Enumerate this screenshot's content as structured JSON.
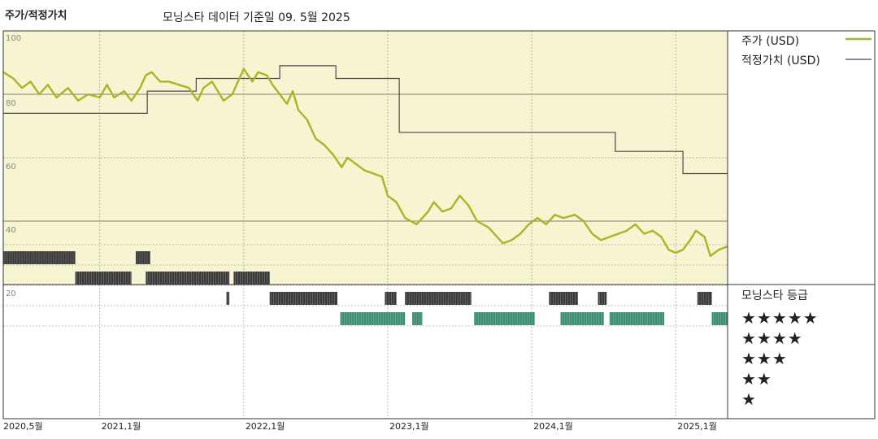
{
  "header": {
    "left_title": "주가/적정가치",
    "subtitle": "모닝스타 데이터 기준일 09. 5월 2025"
  },
  "legend": {
    "price_label": "주가 (USD)",
    "fair_value_label": "적정가치 (USD)",
    "price_color": "#a8b526",
    "fair_value_color": "#4a4a4a"
  },
  "rating": {
    "title": "모닝스타 등급",
    "rows": [
      "★★★★★",
      "★★★★",
      "★★★",
      "★★",
      "★"
    ],
    "color_5star": "#3d8c74",
    "color_other": "#3a3a3a"
  },
  "colors": {
    "plot_bg": "#f7f4d2"
  },
  "chart_data": {
    "type": "line",
    "x_unit": "year",
    "x_range": [
      2020.33,
      2025.36
    ],
    "ylim": [
      20,
      100
    ],
    "yticks": [
      20,
      40,
      60,
      80,
      100
    ],
    "xtick_labels": [
      {
        "x": 2020.33,
        "label": "2020,5월"
      },
      {
        "x": 2021.0,
        "label": "2021,1월"
      },
      {
        "x": 2022.0,
        "label": "2022,1월"
      },
      {
        "x": 2023.0,
        "label": "2023,1월"
      },
      {
        "x": 2024.0,
        "label": "2024,1월"
      },
      {
        "x": 2025.0,
        "label": "2025,1월"
      }
    ],
    "grid": true,
    "series": [
      {
        "name": "주가 (USD)",
        "points": [
          [
            2020.33,
            87
          ],
          [
            2020.4,
            85
          ],
          [
            2020.46,
            82
          ],
          [
            2020.52,
            84
          ],
          [
            2020.58,
            80
          ],
          [
            2020.64,
            83
          ],
          [
            2020.7,
            79
          ],
          [
            2020.78,
            82
          ],
          [
            2020.85,
            78
          ],
          [
            2020.92,
            80
          ],
          [
            2021.0,
            79
          ],
          [
            2021.05,
            83
          ],
          [
            2021.1,
            79
          ],
          [
            2021.17,
            81
          ],
          [
            2021.22,
            78
          ],
          [
            2021.28,
            82
          ],
          [
            2021.32,
            86
          ],
          [
            2021.36,
            87
          ],
          [
            2021.42,
            84
          ],
          [
            2021.48,
            84
          ],
          [
            2021.55,
            83
          ],
          [
            2021.62,
            82
          ],
          [
            2021.68,
            78
          ],
          [
            2021.72,
            82
          ],
          [
            2021.78,
            84
          ],
          [
            2021.82,
            81
          ],
          [
            2021.86,
            78
          ],
          [
            2021.92,
            80
          ],
          [
            2021.96,
            84
          ],
          [
            2022.0,
            88
          ],
          [
            2022.06,
            84
          ],
          [
            2022.1,
            87
          ],
          [
            2022.16,
            86
          ],
          [
            2022.2,
            83
          ],
          [
            2022.25,
            80
          ],
          [
            2022.3,
            77
          ],
          [
            2022.34,
            81
          ],
          [
            2022.38,
            75
          ],
          [
            2022.44,
            72
          ],
          [
            2022.5,
            66
          ],
          [
            2022.56,
            64
          ],
          [
            2022.62,
            61
          ],
          [
            2022.68,
            57
          ],
          [
            2022.72,
            60
          ],
          [
            2022.78,
            58
          ],
          [
            2022.84,
            56
          ],
          [
            2022.9,
            55
          ],
          [
            2022.96,
            54
          ],
          [
            2023.0,
            48
          ],
          [
            2023.06,
            46
          ],
          [
            2023.12,
            41
          ],
          [
            2023.2,
            39
          ],
          [
            2023.28,
            43
          ],
          [
            2023.32,
            46
          ],
          [
            2023.38,
            43
          ],
          [
            2023.44,
            44
          ],
          [
            2023.5,
            48
          ],
          [
            2023.56,
            45
          ],
          [
            2023.62,
            40
          ],
          [
            2023.7,
            38
          ],
          [
            2023.76,
            35
          ],
          [
            2023.8,
            33
          ],
          [
            2023.86,
            34
          ],
          [
            2023.92,
            36
          ],
          [
            2023.98,
            39
          ],
          [
            2024.04,
            41
          ],
          [
            2024.1,
            39
          ],
          [
            2024.16,
            42
          ],
          [
            2024.22,
            41
          ],
          [
            2024.3,
            42
          ],
          [
            2024.36,
            40
          ],
          [
            2024.42,
            36
          ],
          [
            2024.48,
            34
          ],
          [
            2024.54,
            35
          ],
          [
            2024.6,
            36
          ],
          [
            2024.66,
            37
          ],
          [
            2024.72,
            39
          ],
          [
            2024.78,
            36
          ],
          [
            2024.84,
            37
          ],
          [
            2024.9,
            35
          ],
          [
            2024.95,
            31
          ],
          [
            2025.0,
            30
          ],
          [
            2025.05,
            31
          ],
          [
            2025.1,
            34
          ],
          [
            2025.14,
            37
          ],
          [
            2025.2,
            35
          ],
          [
            2025.24,
            29
          ],
          [
            2025.3,
            31
          ],
          [
            2025.36,
            32
          ]
        ]
      },
      {
        "name": "적정가치 (USD)",
        "step": true,
        "points": [
          [
            2020.33,
            74
          ],
          [
            2020.66,
            74
          ],
          [
            2021.33,
            74
          ],
          [
            2021.33,
            81
          ],
          [
            2021.67,
            81
          ],
          [
            2021.67,
            85
          ],
          [
            2022.25,
            85
          ],
          [
            2022.25,
            89
          ],
          [
            2022.64,
            89
          ],
          [
            2022.64,
            85
          ],
          [
            2023.08,
            85
          ],
          [
            2023.08,
            68
          ],
          [
            2024.58,
            68
          ],
          [
            2024.58,
            62
          ],
          [
            2025.05,
            62
          ],
          [
            2025.05,
            55
          ],
          [
            2025.36,
            55
          ]
        ]
      }
    ],
    "rating_periods": [
      {
        "stars": 2,
        "ranges": [
          [
            2020.33,
            2020.83
          ],
          [
            2021.25,
            2021.35
          ]
        ]
      },
      {
        "stars": 3,
        "ranges": [
          [
            2020.83,
            2021.22
          ],
          [
            2021.32,
            2021.9
          ],
          [
            2021.93,
            2022.18
          ]
        ]
      },
      {
        "stars": 4,
        "ranges": [
          [
            2021.88,
            2021.9
          ],
          [
            2022.18,
            2022.65
          ],
          [
            2022.98,
            2023.06
          ],
          [
            2023.12,
            2023.58
          ],
          [
            2024.12,
            2024.32
          ],
          [
            2024.46,
            2024.52
          ],
          [
            2025.15,
            2025.25
          ]
        ]
      },
      {
        "stars": 5,
        "ranges": [
          [
            2022.67,
            2023.12
          ],
          [
            2023.17,
            2023.24
          ],
          [
            2023.6,
            2024.02
          ],
          [
            2024.2,
            2024.5
          ],
          [
            2024.54,
            2024.92
          ],
          [
            2025.25,
            2025.36
          ]
        ]
      }
    ]
  }
}
